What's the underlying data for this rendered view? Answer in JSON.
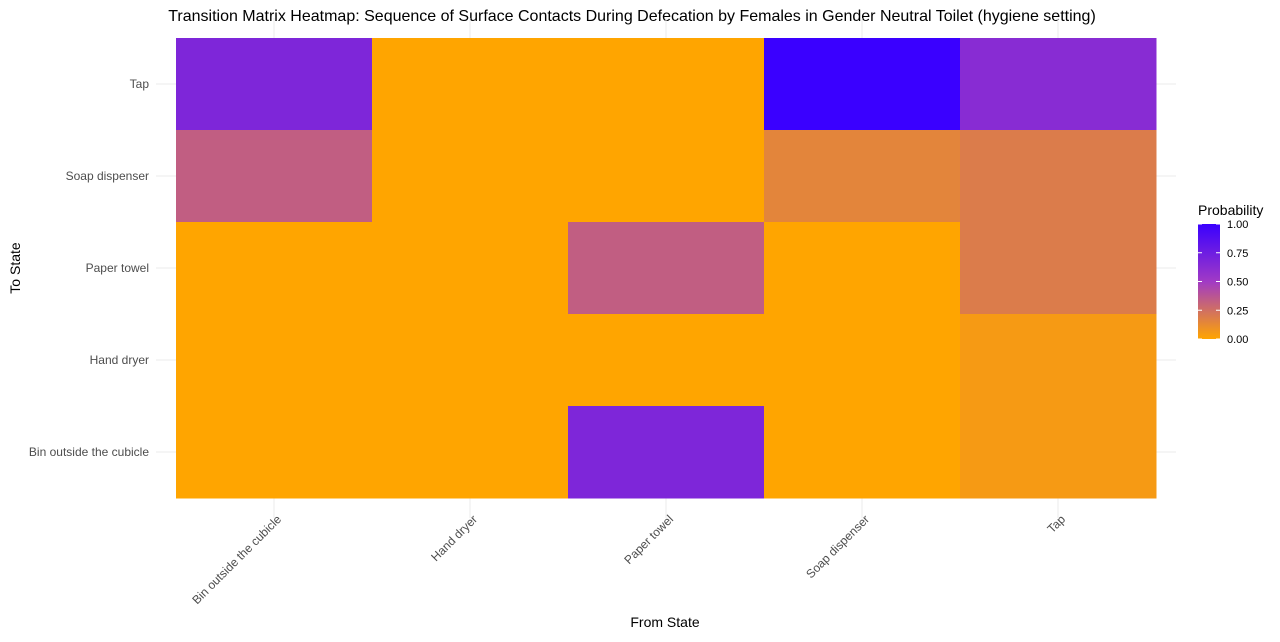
{
  "chart_data": {
    "type": "heatmap",
    "title": "Transition Matrix Heatmap: Sequence of Surface Contacts During Defecation by Females in Gender Neutral Toilet (hygiene setting)",
    "xlabel": "From State",
    "ylabel": "To State",
    "x_categories": [
      "Bin outside the cubicle",
      "Hand dryer",
      "Paper towel",
      "Soap dispenser",
      "Tap"
    ],
    "x_tick_labels": [
      "Bin outside the cubicle",
      "Hand dryer",
      "Paper towel",
      "Soap dispenser",
      "Tap"
    ],
    "y_categories_top_to_bottom": [
      "Tap",
      "Soap dispenser",
      "Paper towel",
      "Hand dryer",
      "Bin outside the cubicle"
    ],
    "values": [
      [
        0.67,
        0.0,
        0.0,
        1.0,
        0.62
      ],
      [
        0.33,
        0.0,
        0.0,
        0.15,
        0.19
      ],
      [
        0.0,
        0.0,
        0.33,
        0.0,
        0.19
      ],
      [
        0.0,
        0.0,
        0.0,
        0.0,
        0.05
      ],
      [
        0.0,
        0.0,
        0.67,
        0.0,
        0.05
      ]
    ],
    "legend": {
      "title": "Probability",
      "position": "right",
      "ticks": [
        0,
        0.25,
        0.5,
        0.75,
        1
      ],
      "tick_labels": [
        "0.00",
        "0.25",
        "0.50",
        "0.75",
        "1.00"
      ]
    },
    "color_scale": {
      "low": "#FFA500",
      "mid": "#A13AC5",
      "high": "#3A00FF"
    },
    "limits": [
      0,
      1
    ]
  }
}
